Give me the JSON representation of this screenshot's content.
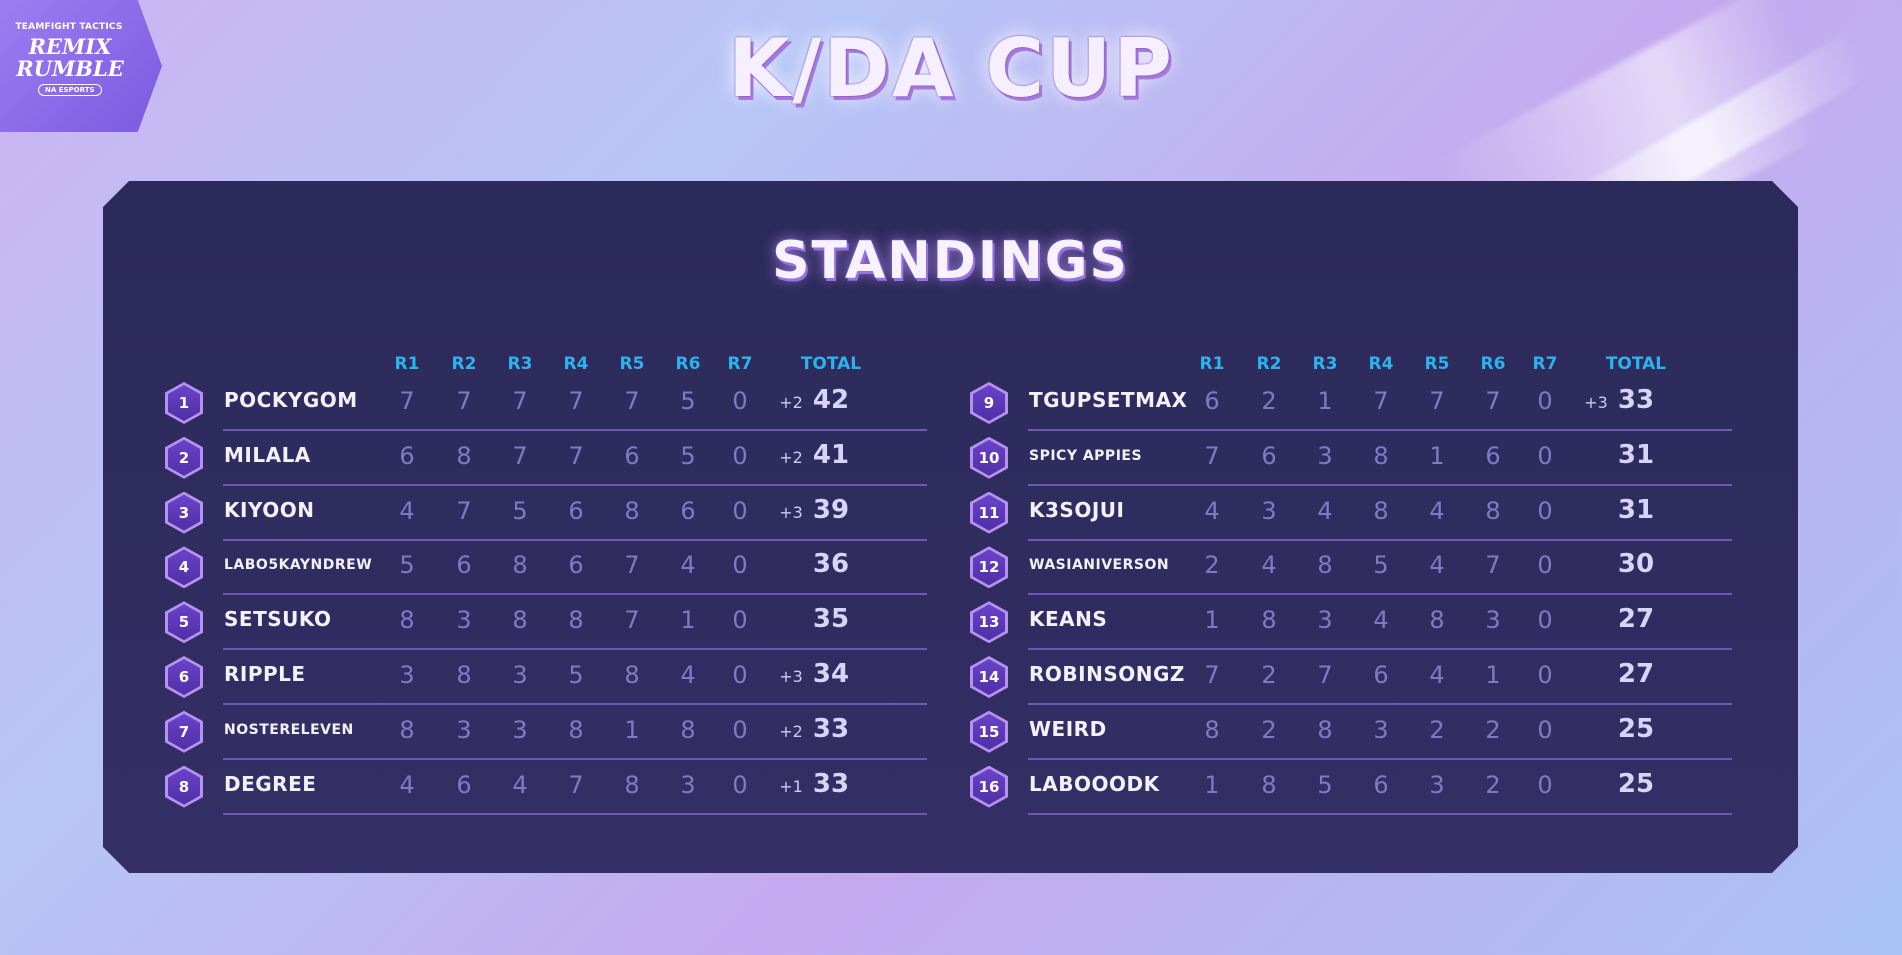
{
  "event_logo": {
    "small_text": "TEAMFIGHT TACTICS",
    "main_text_1": "REMIX",
    "main_text_2": "RUMBLE",
    "badge": "NA ESPORTS"
  },
  "title": "K/DA CUP",
  "panel_title": "STANDINGS",
  "columns": [
    "R1",
    "R2",
    "R3",
    "R4",
    "R5",
    "R6",
    "R7"
  ],
  "total_label": "TOTAL",
  "standings_left": [
    {
      "rank": "1",
      "name": "POCKYGOM",
      "rounds": [
        "7",
        "7",
        "7",
        "7",
        "7",
        "5",
        "0"
      ],
      "bonus": "+2",
      "total": "42"
    },
    {
      "rank": "2",
      "name": "MILALA",
      "rounds": [
        "6",
        "8",
        "7",
        "7",
        "6",
        "5",
        "0"
      ],
      "bonus": "+2",
      "total": "41"
    },
    {
      "rank": "3",
      "name": "KIYOON",
      "rounds": [
        "4",
        "7",
        "5",
        "6",
        "8",
        "6",
        "0"
      ],
      "bonus": "+3",
      "total": "39"
    },
    {
      "rank": "4",
      "name": "LABO5KAYNDREW",
      "rounds": [
        "5",
        "6",
        "8",
        "6",
        "7",
        "4",
        "0"
      ],
      "bonus": "",
      "total": "36"
    },
    {
      "rank": "5",
      "name": "SETSUKO",
      "rounds": [
        "8",
        "3",
        "8",
        "8",
        "7",
        "1",
        "0"
      ],
      "bonus": "",
      "total": "35"
    },
    {
      "rank": "6",
      "name": "RIPPLE",
      "rounds": [
        "3",
        "8",
        "3",
        "5",
        "8",
        "4",
        "0"
      ],
      "bonus": "+3",
      "total": "34"
    },
    {
      "rank": "7",
      "name": "NOSTERELEVEN",
      "rounds": [
        "8",
        "3",
        "3",
        "8",
        "1",
        "8",
        "0"
      ],
      "bonus": "+2",
      "total": "33"
    },
    {
      "rank": "8",
      "name": "DEGREE",
      "rounds": [
        "4",
        "6",
        "4",
        "7",
        "8",
        "3",
        "0"
      ],
      "bonus": "+1",
      "total": "33"
    }
  ],
  "standings_right": [
    {
      "rank": "9",
      "name": "TGUPSETMAX",
      "rounds": [
        "6",
        "2",
        "1",
        "7",
        "7",
        "7",
        "0"
      ],
      "bonus": "+3",
      "total": "33"
    },
    {
      "rank": "10",
      "name": "SPICY APPIES",
      "rounds": [
        "7",
        "6",
        "3",
        "8",
        "1",
        "6",
        "0"
      ],
      "bonus": "",
      "total": "31"
    },
    {
      "rank": "11",
      "name": "K3SOJUI",
      "rounds": [
        "4",
        "3",
        "4",
        "8",
        "4",
        "8",
        "0"
      ],
      "bonus": "",
      "total": "31"
    },
    {
      "rank": "12",
      "name": "WASIANIVERSON",
      "rounds": [
        "2",
        "4",
        "8",
        "5",
        "4",
        "7",
        "0"
      ],
      "bonus": "",
      "total": "30"
    },
    {
      "rank": "13",
      "name": "KEANS",
      "rounds": [
        "1",
        "8",
        "3",
        "4",
        "8",
        "3",
        "0"
      ],
      "bonus": "",
      "total": "27"
    },
    {
      "rank": "14",
      "name": "ROBINSONGZ",
      "rounds": [
        "7",
        "2",
        "7",
        "6",
        "4",
        "1",
        "0"
      ],
      "bonus": "",
      "total": "27"
    },
    {
      "rank": "15",
      "name": "WEIRD",
      "rounds": [
        "8",
        "2",
        "8",
        "3",
        "2",
        "2",
        "0"
      ],
      "bonus": "",
      "total": "25"
    },
    {
      "rank": "16",
      "name": "LABOOODK",
      "rounds": [
        "1",
        "8",
        "5",
        "6",
        "3",
        "2",
        "0"
      ],
      "bonus": "",
      "total": "25"
    }
  ]
}
